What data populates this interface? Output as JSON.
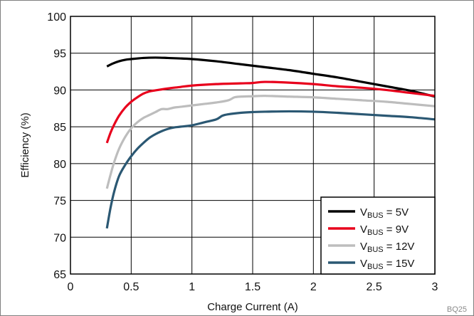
{
  "chart_data": {
    "type": "line",
    "title": "",
    "xlabel": "Charge Current (A)",
    "ylabel": "Efficiency (%)",
    "xlim": [
      0,
      3
    ],
    "ylim": [
      65,
      100
    ],
    "xticks": [
      0,
      0.5,
      1,
      1.5,
      2,
      2.5,
      3
    ],
    "xtick_labels": [
      "0",
      "0.5",
      "1",
      "1.5",
      "2",
      "2.5",
      "3"
    ],
    "yticks": [
      65,
      70,
      75,
      80,
      85,
      90,
      95,
      100
    ],
    "ytick_labels": [
      "65",
      "70",
      "75",
      "80",
      "85",
      "90",
      "95",
      "100"
    ],
    "grid": true,
    "legend_position": "bottom-right",
    "figure_code": "BQ25",
    "series": [
      {
        "name": "VBUS = 5V",
        "legend": {
          "prefix": "V",
          "sub": "BUS",
          "suffix": " = 5V"
        },
        "color": "#000000",
        "x": [
          0.3,
          0.35,
          0.4,
          0.45,
          0.5,
          0.6,
          0.7,
          0.8,
          1.0,
          1.2,
          1.4,
          1.6,
          1.8,
          2.0,
          2.2,
          2.4,
          2.6,
          2.8,
          3.0
        ],
        "y": [
          93.2,
          93.6,
          93.9,
          94.1,
          94.2,
          94.35,
          94.4,
          94.35,
          94.2,
          93.9,
          93.5,
          93.1,
          92.7,
          92.2,
          91.7,
          91.1,
          90.5,
          89.9,
          89.1
        ]
      },
      {
        "name": "VBUS = 9V",
        "legend": {
          "prefix": "V",
          "sub": "BUS",
          "suffix": " = 9V"
        },
        "color": "#e8001c",
        "x": [
          0.3,
          0.33,
          0.36,
          0.4,
          0.45,
          0.5,
          0.55,
          0.6,
          0.65,
          0.7,
          0.8,
          0.9,
          1.0,
          1.2,
          1.4,
          1.5,
          1.6,
          1.8,
          2.0,
          2.2,
          2.4,
          2.6,
          2.8,
          3.0
        ],
        "y": [
          82.8,
          84.2,
          85.3,
          86.5,
          87.6,
          88.4,
          89.0,
          89.5,
          89.8,
          89.95,
          90.2,
          90.4,
          90.6,
          90.8,
          90.9,
          90.95,
          91.1,
          91.0,
          90.8,
          90.5,
          90.3,
          90.0,
          89.6,
          89.2
        ]
      },
      {
        "name": "VBUS = 12V",
        "legend": {
          "prefix": "V",
          "sub": "BUS",
          "suffix": " = 12V"
        },
        "color": "#bdbdbd",
        "x": [
          0.3,
          0.33,
          0.36,
          0.4,
          0.45,
          0.5,
          0.55,
          0.6,
          0.65,
          0.7,
          0.75,
          0.8,
          0.85,
          0.9,
          1.0,
          1.1,
          1.2,
          1.3,
          1.35,
          1.4,
          1.5,
          1.6,
          1.8,
          2.0,
          2.2,
          2.4,
          2.6,
          2.8,
          3.0
        ],
        "y": [
          76.6,
          78.5,
          80.2,
          82.0,
          83.6,
          84.8,
          85.6,
          86.2,
          86.6,
          87.0,
          87.4,
          87.4,
          87.6,
          87.7,
          87.9,
          88.1,
          88.3,
          88.6,
          89.0,
          89.1,
          89.15,
          89.2,
          89.1,
          89.0,
          88.8,
          88.6,
          88.4,
          88.1,
          87.8
        ]
      },
      {
        "name": "VBUS = 15V",
        "legend": {
          "prefix": "V",
          "sub": "BUS",
          "suffix": " = 15V"
        },
        "color": "#2b5873",
        "x": [
          0.3,
          0.33,
          0.36,
          0.4,
          0.45,
          0.5,
          0.55,
          0.6,
          0.65,
          0.7,
          0.75,
          0.8,
          0.85,
          0.9,
          1.0,
          1.1,
          1.2,
          1.25,
          1.3,
          1.4,
          1.5,
          1.6,
          1.8,
          2.0,
          2.2,
          2.4,
          2.6,
          2.8,
          3.0
        ],
        "y": [
          71.2,
          74.0,
          76.2,
          78.3,
          79.8,
          81.0,
          82.0,
          82.8,
          83.5,
          84.0,
          84.4,
          84.7,
          84.9,
          85.0,
          85.2,
          85.6,
          86.0,
          86.5,
          86.7,
          86.9,
          87.0,
          87.05,
          87.1,
          87.05,
          86.9,
          86.7,
          86.5,
          86.3,
          86.0
        ]
      }
    ]
  }
}
